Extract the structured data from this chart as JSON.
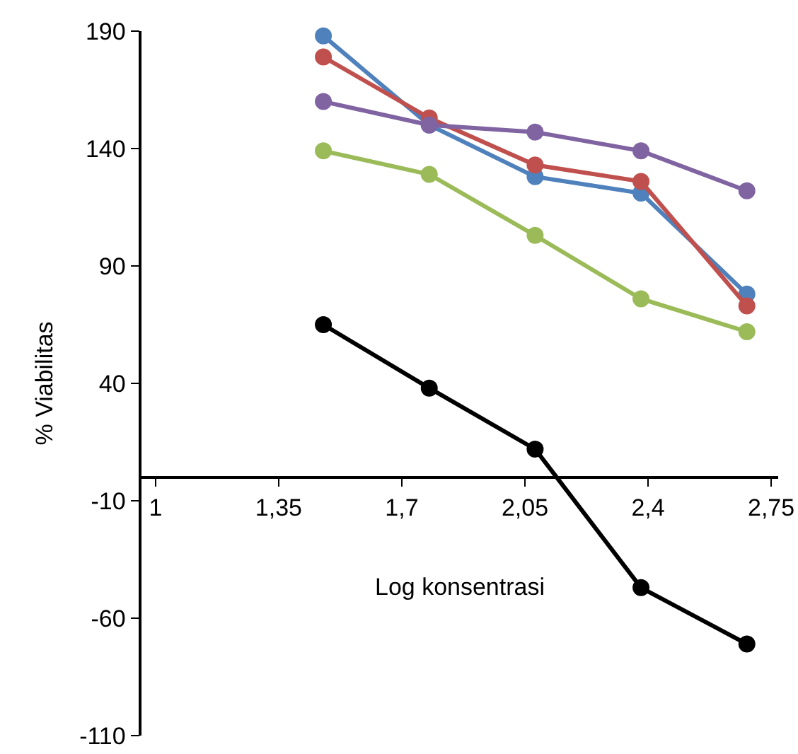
{
  "chart_data": {
    "type": "line",
    "xlabel": "Log konsentrasi",
    "ylabel": "% Viabilitas",
    "x": [
      1.477,
      1.778,
      2.079,
      2.38,
      2.681
    ],
    "series": [
      {
        "color": "#4f81bd",
        "values": [
          188,
          150,
          128,
          121,
          78
        ]
      },
      {
        "color": "#c0504d",
        "values": [
          179,
          153,
          133,
          126,
          73
        ]
      },
      {
        "color": "#8064a2",
        "values": [
          160,
          150,
          147,
          139,
          122
        ]
      },
      {
        "color": "#9bbb59",
        "values": [
          139,
          129,
          103,
          76,
          62
        ]
      },
      {
        "color": "#000000",
        "values": [
          65,
          38,
          12,
          -47,
          -71
        ]
      }
    ],
    "xlim": [
      0.96,
      2.77
    ],
    "xticks": [
      {
        "value": 1,
        "label": "1"
      },
      {
        "value": 1.35,
        "label": "1,35"
      },
      {
        "value": 1.7,
        "label": "1,7"
      },
      {
        "value": 2.05,
        "label": "2,05"
      },
      {
        "value": 2.4,
        "label": "2,4"
      },
      {
        "value": 2.75,
        "label": "2,75"
      }
    ],
    "ylim": [
      -110,
      190
    ],
    "yticks": [
      -110,
      -60,
      -10,
      40,
      90,
      140,
      190
    ],
    "grid": false,
    "marker": "circle",
    "line_style": "solid"
  }
}
